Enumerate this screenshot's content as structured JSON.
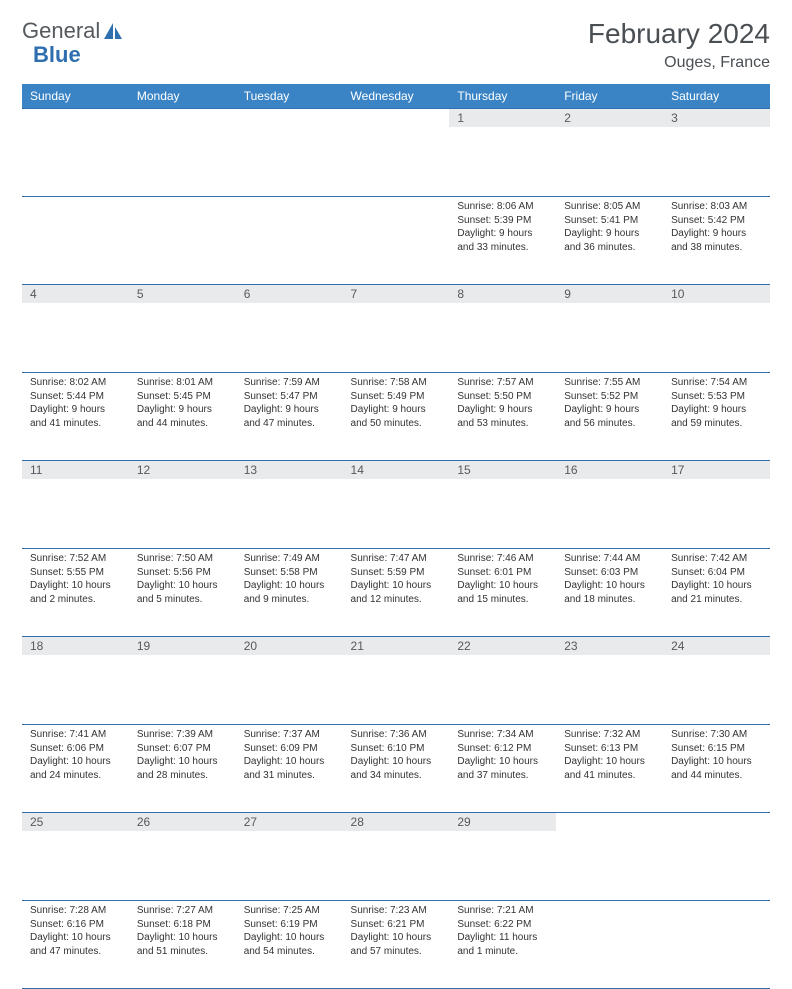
{
  "logo": {
    "text1": "General",
    "text2": "Blue"
  },
  "title": "February 2024",
  "location": "Ouges, France",
  "colors": {
    "header_bg": "#3a84c5",
    "border": "#2f6fb0",
    "daynum_bg": "#e9eaeb",
    "text": "#333333",
    "title_text": "#4a4f54"
  },
  "weekdays": [
    "Sunday",
    "Monday",
    "Tuesday",
    "Wednesday",
    "Thursday",
    "Friday",
    "Saturday"
  ],
  "weeks": [
    [
      null,
      null,
      null,
      null,
      {
        "n": "1",
        "sr": "8:06 AM",
        "ss": "5:39 PM",
        "dl": "9 hours and 33 minutes."
      },
      {
        "n": "2",
        "sr": "8:05 AM",
        "ss": "5:41 PM",
        "dl": "9 hours and 36 minutes."
      },
      {
        "n": "3",
        "sr": "8:03 AM",
        "ss": "5:42 PM",
        "dl": "9 hours and 38 minutes."
      }
    ],
    [
      {
        "n": "4",
        "sr": "8:02 AM",
        "ss": "5:44 PM",
        "dl": "9 hours and 41 minutes."
      },
      {
        "n": "5",
        "sr": "8:01 AM",
        "ss": "5:45 PM",
        "dl": "9 hours and 44 minutes."
      },
      {
        "n": "6",
        "sr": "7:59 AM",
        "ss": "5:47 PM",
        "dl": "9 hours and 47 minutes."
      },
      {
        "n": "7",
        "sr": "7:58 AM",
        "ss": "5:49 PM",
        "dl": "9 hours and 50 minutes."
      },
      {
        "n": "8",
        "sr": "7:57 AM",
        "ss": "5:50 PM",
        "dl": "9 hours and 53 minutes."
      },
      {
        "n": "9",
        "sr": "7:55 AM",
        "ss": "5:52 PM",
        "dl": "9 hours and 56 minutes."
      },
      {
        "n": "10",
        "sr": "7:54 AM",
        "ss": "5:53 PM",
        "dl": "9 hours and 59 minutes."
      }
    ],
    [
      {
        "n": "11",
        "sr": "7:52 AM",
        "ss": "5:55 PM",
        "dl": "10 hours and 2 minutes."
      },
      {
        "n": "12",
        "sr": "7:50 AM",
        "ss": "5:56 PM",
        "dl": "10 hours and 5 minutes."
      },
      {
        "n": "13",
        "sr": "7:49 AM",
        "ss": "5:58 PM",
        "dl": "10 hours and 9 minutes."
      },
      {
        "n": "14",
        "sr": "7:47 AM",
        "ss": "5:59 PM",
        "dl": "10 hours and 12 minutes."
      },
      {
        "n": "15",
        "sr": "7:46 AM",
        "ss": "6:01 PM",
        "dl": "10 hours and 15 minutes."
      },
      {
        "n": "16",
        "sr": "7:44 AM",
        "ss": "6:03 PM",
        "dl": "10 hours and 18 minutes."
      },
      {
        "n": "17",
        "sr": "7:42 AM",
        "ss": "6:04 PM",
        "dl": "10 hours and 21 minutes."
      }
    ],
    [
      {
        "n": "18",
        "sr": "7:41 AM",
        "ss": "6:06 PM",
        "dl": "10 hours and 24 minutes."
      },
      {
        "n": "19",
        "sr": "7:39 AM",
        "ss": "6:07 PM",
        "dl": "10 hours and 28 minutes."
      },
      {
        "n": "20",
        "sr": "7:37 AM",
        "ss": "6:09 PM",
        "dl": "10 hours and 31 minutes."
      },
      {
        "n": "21",
        "sr": "7:36 AM",
        "ss": "6:10 PM",
        "dl": "10 hours and 34 minutes."
      },
      {
        "n": "22",
        "sr": "7:34 AM",
        "ss": "6:12 PM",
        "dl": "10 hours and 37 minutes."
      },
      {
        "n": "23",
        "sr": "7:32 AM",
        "ss": "6:13 PM",
        "dl": "10 hours and 41 minutes."
      },
      {
        "n": "24",
        "sr": "7:30 AM",
        "ss": "6:15 PM",
        "dl": "10 hours and 44 minutes."
      }
    ],
    [
      {
        "n": "25",
        "sr": "7:28 AM",
        "ss": "6:16 PM",
        "dl": "10 hours and 47 minutes."
      },
      {
        "n": "26",
        "sr": "7:27 AM",
        "ss": "6:18 PM",
        "dl": "10 hours and 51 minutes."
      },
      {
        "n": "27",
        "sr": "7:25 AM",
        "ss": "6:19 PM",
        "dl": "10 hours and 54 minutes."
      },
      {
        "n": "28",
        "sr": "7:23 AM",
        "ss": "6:21 PM",
        "dl": "10 hours and 57 minutes."
      },
      {
        "n": "29",
        "sr": "7:21 AM",
        "ss": "6:22 PM",
        "dl": "11 hours and 1 minute."
      },
      null,
      null
    ]
  ],
  "labels": {
    "sunrise": "Sunrise:",
    "sunset": "Sunset:",
    "daylight": "Daylight:"
  }
}
